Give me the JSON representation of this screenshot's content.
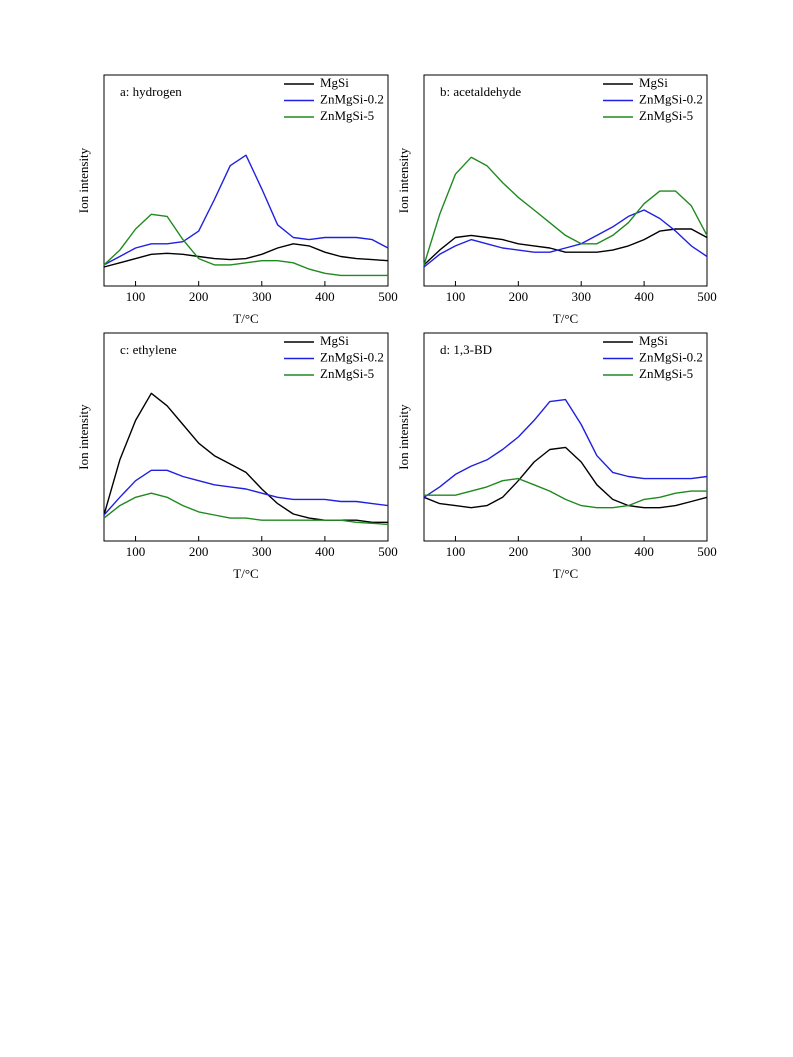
{
  "chart_data": [
    {
      "type": "line",
      "title": "a: hydrogen",
      "ylabel": "Ion intensity",
      "xlabel": "T/°C",
      "legend": "upper right",
      "x": [
        50,
        75,
        100,
        125,
        150,
        175,
        200,
        225,
        250,
        275,
        300,
        325,
        350,
        375,
        400,
        425,
        450,
        475,
        500
      ],
      "xlim": [
        50,
        500
      ],
      "ylim": [
        0,
        100
      ],
      "xticks": [
        100,
        200,
        300,
        400,
        500
      ],
      "series": [
        {
          "name": "MgSi",
          "color": "#000000",
          "values": [
            9,
            11,
            13,
            15,
            15.5,
            15,
            14,
            13,
            12.5,
            13,
            15,
            18,
            20,
            19,
            16,
            14,
            13,
            12.5,
            12
          ]
        },
        {
          "name": "ZnMgSi-0.2",
          "color": "#2020e0",
          "values": [
            10,
            14,
            18,
            20,
            20,
            21,
            26,
            41,
            57,
            62,
            46,
            29,
            23,
            22,
            23,
            23,
            23,
            22,
            18
          ]
        },
        {
          "name": "ZnMgSi-5",
          "color": "#1f8a1f",
          "values": [
            10,
            17,
            27,
            34,
            33,
            22,
            13,
            10,
            10,
            11,
            12,
            12,
            11,
            8,
            6,
            5,
            5,
            5,
            5
          ]
        }
      ]
    },
    {
      "type": "line",
      "title": "b: acetaldehyde",
      "ylabel": "Ion intensity",
      "xlabel": "T/°C",
      "legend": "upper right",
      "x": [
        50,
        75,
        100,
        125,
        150,
        175,
        200,
        225,
        250,
        275,
        300,
        325,
        350,
        375,
        400,
        425,
        450,
        475,
        500
      ],
      "xlim": [
        50,
        500
      ],
      "ylim": [
        0,
        100
      ],
      "xticks": [
        100,
        200,
        300,
        400,
        500
      ],
      "series": [
        {
          "name": "MgSi",
          "color": "#000000",
          "values": [
            10,
            17,
            23,
            24,
            23,
            22,
            20,
            19,
            18,
            16,
            16,
            16,
            17,
            19,
            22,
            26,
            27,
            27,
            23
          ]
        },
        {
          "name": "ZnMgSi-0.2",
          "color": "#2020e0",
          "values": [
            9,
            15,
            19,
            22,
            20,
            18,
            17,
            16,
            16,
            18,
            20,
            24,
            28,
            33,
            36,
            32,
            26,
            19,
            14
          ]
        },
        {
          "name": "ZnMgSi-5",
          "color": "#1f8a1f",
          "values": [
            10,
            34,
            53,
            61,
            57,
            49,
            42,
            36,
            30,
            24,
            20,
            20,
            24,
            30,
            39,
            45,
            45,
            38,
            24
          ]
        }
      ]
    },
    {
      "type": "line",
      "title": "c: ethylene",
      "ylabel": "Ion intensity",
      "xlabel": "T/°C",
      "legend": "upper right",
      "x": [
        50,
        75,
        100,
        125,
        150,
        175,
        200,
        225,
        250,
        275,
        300,
        325,
        350,
        375,
        400,
        425,
        450,
        475,
        500
      ],
      "xlim": [
        50,
        500
      ],
      "ylim": [
        0,
        100
      ],
      "xticks": [
        100,
        200,
        300,
        400,
        500
      ],
      "series": [
        {
          "name": "MgSi",
          "color": "#000000",
          "values": [
            12.5,
            39,
            58,
            71,
            65,
            56,
            47,
            41,
            37,
            33,
            25,
            18,
            13,
            11,
            10,
            10,
            10,
            9,
            9
          ]
        },
        {
          "name": "ZnMgSi-0.2",
          "color": "#2020e0",
          "values": [
            12.5,
            21,
            29,
            34,
            34,
            31,
            29,
            27,
            26,
            25,
            23,
            21,
            20,
            20,
            20,
            19,
            19,
            18,
            17
          ]
        },
        {
          "name": "ZnMgSi-5",
          "color": "#1f8a1f",
          "values": [
            11,
            17,
            21,
            23,
            21,
            17,
            14,
            12.5,
            11,
            11,
            10,
            10,
            10,
            10,
            10,
            10,
            9,
            8.5,
            8
          ]
        }
      ]
    },
    {
      "type": "line",
      "title": "d: 1,3-BD",
      "ylabel": "Ion intensity",
      "xlabel": "T/°C",
      "legend": "upper right",
      "x": [
        50,
        75,
        100,
        125,
        150,
        175,
        200,
        225,
        250,
        275,
        300,
        325,
        350,
        375,
        400,
        425,
        450,
        475,
        500
      ],
      "xlim": [
        50,
        500
      ],
      "ylim": [
        0,
        100
      ],
      "xticks": [
        100,
        200,
        300,
        400,
        500
      ],
      "series": [
        {
          "name": "MgSi",
          "color": "#000000",
          "values": [
            21,
            18,
            17,
            16,
            17,
            21,
            29,
            38,
            44,
            45,
            38,
            27,
            20,
            17,
            16,
            16,
            17,
            19,
            21
          ]
        },
        {
          "name": "ZnMgSi-0.2",
          "color": "#2020e0",
          "values": [
            21,
            26,
            32,
            36,
            39,
            44,
            50,
            58,
            67,
            68,
            56,
            41,
            33,
            31,
            30,
            30,
            30,
            30,
            31
          ]
        },
        {
          "name": "ZnMgSi-5",
          "color": "#1f8a1f",
          "values": [
            22,
            22,
            22,
            24,
            26,
            29,
            30,
            27,
            24,
            20,
            17,
            16,
            16,
            17,
            20,
            21,
            23,
            24,
            24
          ]
        }
      ]
    }
  ]
}
